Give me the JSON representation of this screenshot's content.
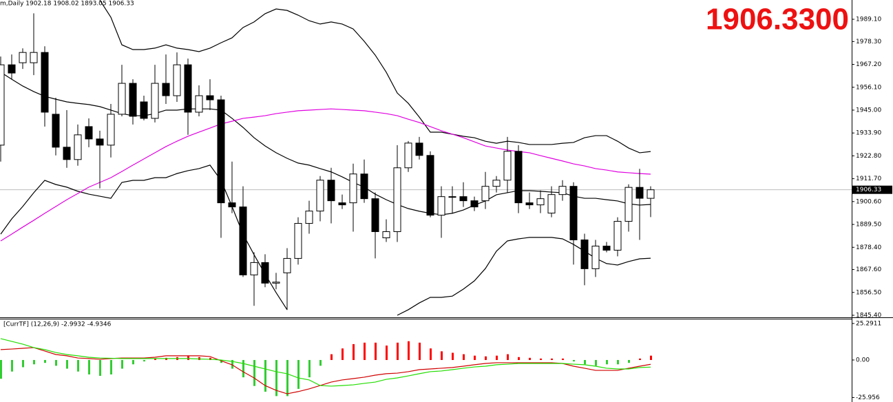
{
  "chart_data": [
    {
      "type": "candlestick",
      "title": "m,Daily  1902.18 1908.02 1893.05 1906.33",
      "price_display": "1906.3300",
      "current_price": {
        "value": 1906.33,
        "label": "1906.33"
      },
      "up_color": "#ffffff",
      "down_color": "#000000",
      "open": [
        1928,
        1967,
        1968,
        1968,
        1973,
        1943,
        1927,
        1921,
        1937,
        1931,
        1928,
        1943,
        1958,
        1949,
        1941,
        1958,
        1952,
        1967,
        1944,
        1952,
        1950,
        1900,
        1898,
        1865,
        1871,
        1861,
        1866,
        1873,
        1890,
        1896,
        1911,
        1900,
        1900,
        1914,
        1902,
        1883,
        1886,
        1917,
        1929,
        1923,
        1894,
        1903,
        1903,
        1901,
        1901,
        1908,
        1911,
        1925,
        1900,
        1899,
        1895,
        1904,
        1908,
        1882,
        1868,
        1879,
        1877,
        1891,
        1907.5,
        1902.18
      ],
      "high": [
        1971,
        1972,
        1975,
        1992,
        1976,
        1951,
        1945,
        1938,
        1941,
        1935,
        1948,
        1967,
        1960,
        1952,
        1967,
        1972,
        1973,
        1970,
        1957,
        1960,
        1952,
        1920,
        1908,
        1876,
        1875,
        1866,
        1878,
        1893,
        1901,
        1913,
        1917,
        1904,
        1919,
        1921,
        1905,
        1892,
        1928,
        1930,
        1932,
        1925,
        1908,
        1908,
        1910,
        1903,
        1915,
        1913,
        1932,
        1928,
        1905,
        1906,
        1908,
        1911,
        1910,
        1885,
        1882,
        1881,
        1893,
        1909,
        1916.5,
        1908.02
      ],
      "low": [
        1920,
        1960,
        1965,
        1962,
        1937,
        1923,
        1917,
        1918,
        1927,
        1907,
        1922,
        1942,
        1938,
        1940,
        1939,
        1948,
        1949,
        1933,
        1942,
        1945,
        1883,
        1895,
        1864,
        1850,
        1859,
        1858,
        1848,
        1870,
        1885,
        1891,
        1890,
        1897,
        1886,
        1900,
        1873,
        1881,
        1881,
        1915,
        1921,
        1893,
        1883,
        1895,
        1898,
        1896,
        1897,
        1905,
        1905,
        1895,
        1897,
        1895,
        1893,
        1901,
        1870,
        1860,
        1864,
        1876,
        1874,
        1886,
        1882,
        1893.05
      ],
      "close": [
        1967,
        1963,
        1973,
        1973,
        1944,
        1927,
        1921,
        1933,
        1931,
        1928,
        1943,
        1958,
        1942,
        1941,
        1958,
        1952,
        1967,
        1944,
        1952,
        1950,
        1900,
        1898,
        1865,
        1871,
        1861,
        1861.5,
        1873,
        1890,
        1896,
        1911,
        1901,
        1899,
        1914,
        1902,
        1886,
        1886,
        1917,
        1929,
        1923,
        1894,
        1903,
        1903,
        1901,
        1898,
        1908,
        1911,
        1925,
        1900,
        1899,
        1902,
        1904,
        1908,
        1882,
        1868,
        1879,
        1877,
        1891,
        1907.5,
        1902.2,
        1906.33
      ],
      "overlays": [
        {
          "color": "#000000",
          "values": [
            null,
            null,
            null,
            null,
            null,
            null,
            null,
            null,
            null,
            1998.4,
            1990.1,
            1976.7,
            1974.4,
            1974.4,
            1975.1,
            1976.7,
            1975.1,
            1974.4,
            1973.4,
            1975.1,
            1977.7,
            1980.1,
            1985.1,
            1987.8,
            1991.8,
            1994.1,
            1993.4,
            1991.1,
            1988.4,
            1986.8,
            1987.8,
            1986.8,
            1984.4,
            1978.4,
            1971.7,
            1963.4,
            1953.3,
            1948.3,
            1941.6,
            1934.3,
            1934.3,
            1933.3,
            1932.3,
            1931.6,
            1929.9,
            1928.9,
            1929.9,
            1929.3,
            1928.3,
            1928.3,
            1928.3,
            1928.9,
            1929.3,
            1931.6,
            1932.6,
            1932.6,
            1929.9,
            1926.6,
            1924.3,
            1924.9
          ]
        },
        {
          "color": "#000000",
          "values": [
            1963.4,
            1960.0,
            1956.7,
            1954.0,
            1951.7,
            1950.3,
            1949.0,
            1948.3,
            1947.7,
            1946.7,
            1945.0,
            1943.3,
            1942.3,
            1942.3,
            1943.3,
            1945.0,
            1945.0,
            1945.6,
            1945.6,
            1945.6,
            1945.0,
            1941.0,
            1936.6,
            1931.6,
            1927.6,
            1924.3,
            1921.6,
            1919.3,
            1918.3,
            1916.6,
            1915.0,
            1912.6,
            1909.9,
            1907.6,
            1904.2,
            1901.5,
            1899.2,
            1897.2,
            1895.9,
            1894.9,
            1894.2,
            1894.9,
            1896.5,
            1898.9,
            1900.9,
            1903.9,
            1904.9,
            1905.9,
            1905.9,
            1905.6,
            1905.2,
            1904.9,
            1903.2,
            1902.2,
            1902.2,
            1901.5,
            1900.9,
            1899.5,
            1898.9,
            1899.2
          ]
        },
        {
          "color": "#000000",
          "values": [
            1884.8,
            1892.2,
            1898.2,
            1904.9,
            1910.9,
            1908.9,
            1907.6,
            1905.6,
            1904.2,
            1903.2,
            1902.2,
            1909.9,
            1910.9,
            1910.9,
            1912.2,
            1912.2,
            1914.2,
            1915.6,
            1916.6,
            1918.3,
            1910.9,
            1898.2,
            1884.8,
            1874.8,
            1865.4,
            1856.4,
            1848.1,
            null,
            null,
            null,
            null,
            null,
            null,
            null,
            null,
            null,
            1845.4,
            1848.1,
            1851.4,
            1854.1,
            1854.1,
            1854.7,
            1858.1,
            1862.1,
            1868.1,
            1876.5,
            1881.5,
            1882.5,
            1883.2,
            1883.2,
            1883.2,
            1882.5,
            1879.8,
            1876.5,
            1873.1,
            1870.5,
            1869.8,
            1871.5,
            1872.8,
            1873.1
          ]
        },
        {
          "color": "#e000e0",
          "values": [
            1881.5,
            1884.8,
            1888.2,
            1891.5,
            1894.9,
            1898.2,
            1901.5,
            1904.5,
            1907.6,
            1909.9,
            1912.2,
            1915.2,
            1918.3,
            1921.3,
            1924.3,
            1927.3,
            1929.9,
            1932.3,
            1934.3,
            1936.3,
            1938.3,
            1939.6,
            1941.0,
            1941.6,
            1942.3,
            1943.3,
            1944.0,
            1944.7,
            1945.0,
            1945.3,
            1945.6,
            1945.3,
            1945.0,
            1944.7,
            1944.0,
            1943.3,
            1942.3,
            1940.6,
            1939.0,
            1937.0,
            1935.0,
            1933.3,
            1931.6,
            1929.6,
            1927.6,
            1926.6,
            1925.6,
            1924.9,
            1924.3,
            1922.9,
            1921.6,
            1920.3,
            1918.9,
            1917.9,
            1916.6,
            1915.9,
            1915.0,
            1914.6,
            1914.2,
            1913.9
          ]
        }
      ],
      "ylim": [
        1844.4,
        1998.46
      ],
      "yticks": [
        {
          "value": 1989.1,
          "label": "1989.10"
        },
        {
          "value": 1978.3,
          "label": "1978.30"
        },
        {
          "value": 1967.2,
          "label": "1967.20"
        },
        {
          "value": 1956.1,
          "label": "1956.10"
        },
        {
          "value": 1945,
          "label": "1945.00"
        },
        {
          "value": 1933.9,
          "label": "1933.90"
        },
        {
          "value": 1922.8,
          "label": "1922.80"
        },
        {
          "value": 1911.7,
          "label": "1911.70"
        },
        {
          "value": 1900.6,
          "label": "1900.60"
        },
        {
          "value": 1889.5,
          "label": "1889.50"
        },
        {
          "value": 1878.4,
          "label": "1878.40"
        },
        {
          "value": 1867.6,
          "label": "1867.60"
        },
        {
          "value": 1856.5,
          "label": "1856.50"
        },
        {
          "value": 1845.4,
          "label": "1845.40"
        }
      ]
    },
    {
      "type": "macd",
      "title": "[CurrTF] (12,26,9) -2.9932 -4.9346",
      "up_color": "#ff0000",
      "down_color": "#32cd32",
      "histogram": [
        -13,
        -8,
        -5,
        -3,
        -2,
        -4,
        -6,
        -8,
        -10,
        -11,
        -10,
        -6,
        -3,
        -1,
        1,
        1.5,
        2,
        3,
        2,
        1.5,
        -2,
        -6,
        -12,
        -18,
        -22,
        -25,
        -25,
        -20,
        -12,
        -4,
        4,
        8,
        11,
        12,
        12,
        10,
        12,
        13,
        12,
        8,
        6,
        5,
        4,
        3,
        2.5,
        3,
        4,
        2,
        1.5,
        1,
        1,
        1,
        -1,
        -3,
        -4,
        -3,
        -3,
        -2,
        1,
        3
      ],
      "series": [
        {
          "color": "#d00000",
          "values": [
            7.2,
            7.6,
            8.1,
            8.6,
            6.2,
            3.8,
            2.9,
            1.4,
            1.0,
            0.5,
            1.0,
            1.4,
            1.4,
            1.4,
            1.9,
            2.9,
            2.9,
            2.9,
            2.9,
            2.4,
            -0.5,
            -3.3,
            -8.1,
            -12.4,
            -17.7,
            -21.0,
            -23.4,
            -21.9,
            -20.0,
            -17.7,
            -15.3,
            -13.8,
            -12.9,
            -11.9,
            -10.5,
            -9.5,
            -9.1,
            -8.1,
            -6.7,
            -6.2,
            -5.7,
            -5.2,
            -4.3,
            -3.3,
            -2.4,
            -1.9,
            -1.9,
            -1.9,
            -1.9,
            -1.9,
            -1.9,
            -2.4,
            -4.3,
            -5.7,
            -7.2,
            -7.2,
            -7.2,
            -5.7,
            -4.3,
            -2.9932
          ]
        },
        {
          "color": "#22dd00",
          "values": [
            14.8,
            12.9,
            11.0,
            8.6,
            7.2,
            5.2,
            3.8,
            2.9,
            1.9,
            1.4,
            1.2,
            1.0,
            1.0,
            1.0,
            1.0,
            1.0,
            1.0,
            1.0,
            0.7,
            0.5,
            0,
            -1.0,
            -2.4,
            -4.3,
            -6.2,
            -8.1,
            -9.5,
            -12.4,
            -13.8,
            -17.7,
            -18.1,
            -17.7,
            -17.2,
            -16.2,
            -15.3,
            -13.4,
            -12.4,
            -11.0,
            -9.5,
            -8.1,
            -7.6,
            -6.7,
            -5.7,
            -4.8,
            -4.3,
            -3.3,
            -2.9,
            -2.4,
            -2.4,
            -2.4,
            -2.4,
            -2.4,
            -2.9,
            -3.3,
            -4.3,
            -5.7,
            -6.2,
            -6.2,
            -5.2,
            -4.9346
          ]
        }
      ],
      "ylim": [
        -29.1,
        28.6
      ],
      "yticks": [
        25.2911,
        {
          "value": 0,
          "label": "0.00"
        },
        -25.956
      ]
    }
  ]
}
